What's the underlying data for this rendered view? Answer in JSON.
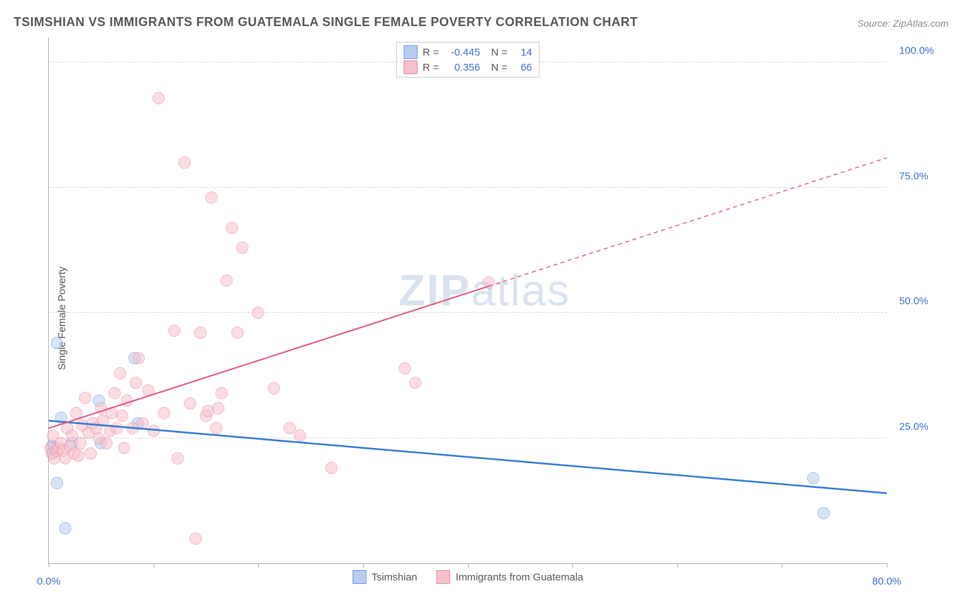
{
  "title": "TSIMSHIAN VS IMMIGRANTS FROM GUATEMALA SINGLE FEMALE POVERTY CORRELATION CHART",
  "source": "Source: ZipAtlas.com",
  "watermark_bold": "ZIP",
  "watermark_rest": "atlas",
  "ylabel": "Single Female Poverty",
  "chart": {
    "type": "scatter",
    "xlim": [
      0,
      80
    ],
    "ylim": [
      0,
      105
    ],
    "xticks": [
      0,
      10,
      20,
      30,
      40,
      50,
      60,
      70,
      80
    ],
    "xticklabels_shown": {
      "0": "0.0%",
      "80": "80.0%"
    },
    "yticks": [
      25,
      50,
      75,
      100
    ],
    "yticklabels": [
      "25.0%",
      "50.0%",
      "75.0%",
      "100.0%"
    ],
    "grid_color": "#d8d8d8",
    "axis_color": "#b0b0b0",
    "tick_label_color": "#3b6fd6",
    "background_color": "#ffffff",
    "title_fontsize": 18,
    "label_fontsize": 15,
    "tick_fontsize": 15,
    "series": [
      {
        "name": "Tsimshian",
        "color_fill": "#b8cdf0",
        "color_stroke": "#6b96db",
        "marker_size": 18,
        "fill_opacity": 0.55,
        "R": "-0.445",
        "N": "14",
        "trend": {
          "x1": 0,
          "y1": 28.5,
          "x2": 80,
          "y2": 14,
          "color": "#2f7ad1",
          "width": 2.5,
          "solid_until_x": 80
        },
        "points": [
          [
            0.3,
            23.5
          ],
          [
            0.3,
            22
          ],
          [
            0.5,
            23
          ],
          [
            0.8,
            44
          ],
          [
            0.8,
            16
          ],
          [
            1.2,
            29
          ],
          [
            1.6,
            7
          ],
          [
            2.2,
            24
          ],
          [
            4.8,
            32.5
          ],
          [
            5,
            24
          ],
          [
            8.2,
            41
          ],
          [
            8.5,
            28
          ],
          [
            73,
            17
          ],
          [
            74,
            10
          ]
        ]
      },
      {
        "name": "Immigrants from Guatemala",
        "color_fill": "#f7c1cc",
        "color_stroke": "#e78aa1",
        "marker_size": 18,
        "fill_opacity": 0.55,
        "R": "0.356",
        "N": "66",
        "trend": {
          "x1": 0,
          "y1": 27,
          "x2": 80,
          "y2": 81,
          "color": "#e25577",
          "width": 2,
          "solid_until_x": 42
        },
        "points": [
          [
            0.2,
            23
          ],
          [
            0.3,
            22
          ],
          [
            0.4,
            25.5
          ],
          [
            0.5,
            21
          ],
          [
            0.8,
            22.5
          ],
          [
            1,
            23
          ],
          [
            1.2,
            24
          ],
          [
            1.4,
            22.5
          ],
          [
            1.6,
            21
          ],
          [
            1.8,
            27
          ],
          [
            2,
            23.5
          ],
          [
            2.2,
            25.5
          ],
          [
            2.4,
            22
          ],
          [
            2.6,
            30
          ],
          [
            2.8,
            21.5
          ],
          [
            3,
            24
          ],
          [
            3.2,
            27.5
          ],
          [
            3.5,
            33
          ],
          [
            3.8,
            26
          ],
          [
            4,
            22
          ],
          [
            4.2,
            28
          ],
          [
            4.5,
            27
          ],
          [
            4.8,
            25
          ],
          [
            5,
            31
          ],
          [
            5.2,
            28.5
          ],
          [
            5.5,
            24
          ],
          [
            5.8,
            26.5
          ],
          [
            6,
            30
          ],
          [
            6.3,
            34
          ],
          [
            6.5,
            27
          ],
          [
            6.8,
            38
          ],
          [
            7,
            29.5
          ],
          [
            7.2,
            23
          ],
          [
            7.5,
            32.5
          ],
          [
            8,
            27
          ],
          [
            8.3,
            36
          ],
          [
            8.6,
            41
          ],
          [
            9,
            28
          ],
          [
            9.5,
            34.5
          ],
          [
            10,
            26.5
          ],
          [
            10.5,
            93
          ],
          [
            11,
            30
          ],
          [
            12,
            46.5
          ],
          [
            12.3,
            21
          ],
          [
            13,
            80
          ],
          [
            13.5,
            32
          ],
          [
            14,
            5
          ],
          [
            14.5,
            46
          ],
          [
            15,
            29.5
          ],
          [
            15.2,
            30.5
          ],
          [
            15.5,
            73
          ],
          [
            16,
            27
          ],
          [
            16.2,
            31
          ],
          [
            16.5,
            34
          ],
          [
            17,
            56.5
          ],
          [
            17.5,
            67
          ],
          [
            18,
            46
          ],
          [
            18.5,
            63
          ],
          [
            20,
            50
          ],
          [
            21.5,
            35
          ],
          [
            23,
            27
          ],
          [
            24,
            25.5
          ],
          [
            27,
            19
          ],
          [
            34,
            39
          ],
          [
            35,
            36
          ],
          [
            42,
            56
          ]
        ]
      }
    ]
  },
  "legend_top": {
    "r_label": "R =",
    "n_label": "N ="
  },
  "legend_bottom_labels": [
    "Tsimshian",
    "Immigrants from Guatemala"
  ]
}
